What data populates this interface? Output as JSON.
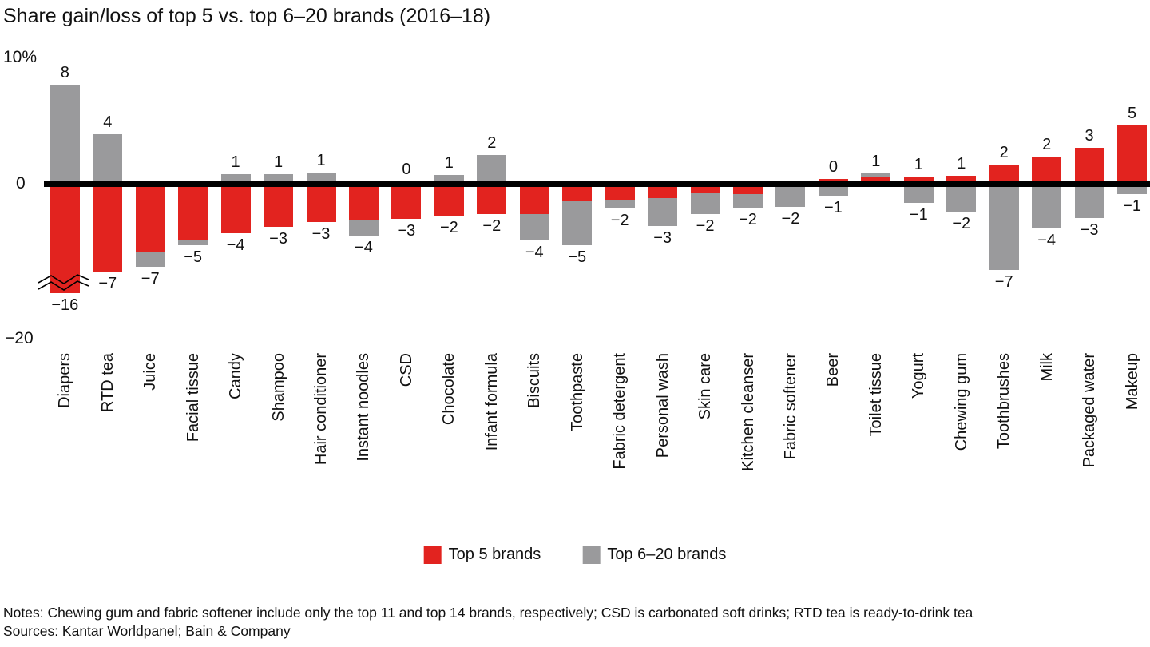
{
  "title": "Share gain/loss of top 5 vs. top 6–20 brands (2016–18)",
  "y_axis": {
    "top_label": "10%",
    "zero_label": "0",
    "bottom_label": "−20"
  },
  "legend": [
    {
      "label": "Top 5 brands",
      "color": "#e2231f"
    },
    {
      "label": "Top 6–20 brands",
      "color": "#9a9a9c"
    }
  ],
  "notes": "Notes: Chewing gum and fabric softener include only the top 11 and top 14 brands, respectively; CSD is carbonated soft drinks; RTD tea is ready-to-drink tea",
  "sources": "Sources: Kantar Worldpanel; Bain & Company",
  "colors": {
    "top5": "#e2231f",
    "top620": "#9a9a9c",
    "axis": "#000000"
  },
  "chart_data": {
    "type": "bar",
    "stacked": true,
    "units": "percentage points of market share",
    "ylim_shown": [
      -20,
      10
    ],
    "grid": false,
    "legend_position": "bottom-center",
    "axis_break": {
      "category": "Diapers",
      "series": "Top 5 brands",
      "true_value": -16,
      "drawn_value": -8.7
    },
    "categories": [
      "Diapers",
      "RTD tea",
      "Juice",
      "Facial tissue",
      "Candy",
      "Shampoo",
      "Hair conditioner",
      "Instant noodles",
      "CSD",
      "Chocolate",
      "Infant formula",
      "Biscuits",
      "Toothpaste",
      "Fabric detergent",
      "Personal wash",
      "Skin care",
      "Kitchen cleanser",
      "Fabric softener",
      "Beer",
      "Toilet tissue",
      "Yogurt",
      "Chewing gum",
      "Toothbrushes",
      "Milk",
      "Packaged water",
      "Makeup"
    ],
    "series": [
      {
        "name": "Top 5 brands",
        "color": "#e2231f",
        "values": [
          -16,
          -7,
          -5.4,
          -4.4,
          -3.9,
          -3.4,
          -3,
          -2.9,
          -2.8,
          -2.5,
          -2.4,
          -2.4,
          -1.4,
          -1.3,
          -1.1,
          -0.7,
          -0.8,
          0,
          0.4,
          0.55,
          0.6,
          0.7,
          1.55,
          2.2,
          2.9,
          4.7
        ]
      },
      {
        "name": "Top 6–20 brands",
        "color": "#9a9a9c",
        "values": [
          7.9,
          3.95,
          -1.2,
          -0.5,
          0.8,
          0.8,
          0.95,
          -1.2,
          0.2,
          0.75,
          2.3,
          -2.1,
          -3.45,
          -0.65,
          -2.25,
          -1.7,
          -1.05,
          -1.8,
          -0.9,
          0.3,
          -1.5,
          -2.2,
          -6.85,
          -3.55,
          -2.7,
          -0.8
        ]
      }
    ],
    "printed_labels": {
      "above": [
        "8",
        "4",
        null,
        null,
        "1",
        "1",
        "1",
        null,
        "0",
        "1",
        "2",
        null,
        null,
        null,
        null,
        null,
        null,
        null,
        "0",
        "1",
        "1",
        "1",
        "2",
        "2",
        "3",
        "5"
      ],
      "below": [
        "−16",
        "−7",
        "−7",
        "−5",
        "−4",
        "−3",
        "−3",
        "−4",
        "−3",
        "−2",
        "−2",
        "−4",
        "−5",
        "−2",
        "−3",
        "−2",
        "−2",
        "−2",
        "−1",
        null,
        "−1",
        "−2",
        "−7",
        "−4",
        "−3",
        "−1"
      ]
    }
  }
}
